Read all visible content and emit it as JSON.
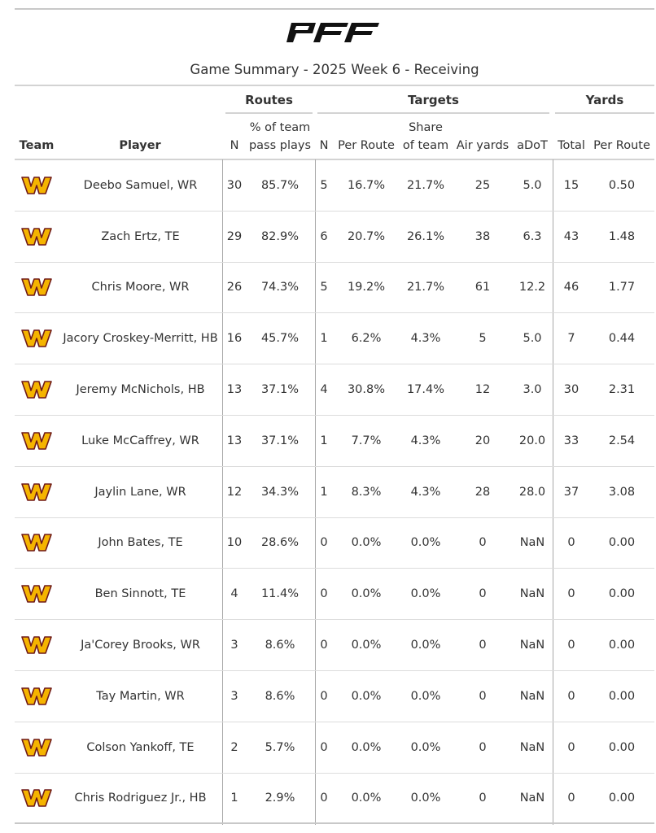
{
  "brand": {
    "logo_text": "PFF",
    "team_logo_color": "#f5b400",
    "team_logo_outline": "#6e1a1a"
  },
  "title": "Game Summary - 2025 Week 6 - Receiving",
  "spanners": {
    "routes": "Routes",
    "targets": "Targets",
    "yards": "Yards"
  },
  "columns": {
    "team": "Team",
    "player": "Player",
    "routes_n": "N",
    "routes_pct_l1": "% of team",
    "routes_pct_l2": "pass plays",
    "targets_n": "N",
    "targets_per_route": "Per Route",
    "share_l1": "Share",
    "share_l2": "of team",
    "air_yards": "Air yards",
    "adot": "aDoT",
    "yards_total": "Total",
    "yards_per_route": "Per Route"
  },
  "rows": [
    {
      "player": "Deebo Samuel, WR",
      "routes": "30",
      "route_pct": "85.7%",
      "targets": "5",
      "tgt_per_route": "16.7%",
      "share": "21.7%",
      "air_yards": "25",
      "adot": "5.0",
      "yards": "15",
      "yds_per_route": "0.50"
    },
    {
      "player": "Zach Ertz, TE",
      "routes": "29",
      "route_pct": "82.9%",
      "targets": "6",
      "tgt_per_route": "20.7%",
      "share": "26.1%",
      "air_yards": "38",
      "adot": "6.3",
      "yards": "43",
      "yds_per_route": "1.48"
    },
    {
      "player": "Chris Moore, WR",
      "routes": "26",
      "route_pct": "74.3%",
      "targets": "5",
      "tgt_per_route": "19.2%",
      "share": "21.7%",
      "air_yards": "61",
      "adot": "12.2",
      "yards": "46",
      "yds_per_route": "1.77"
    },
    {
      "player": "Jacory Croskey-Merritt, HB",
      "routes": "16",
      "route_pct": "45.7%",
      "targets": "1",
      "tgt_per_route": "6.2%",
      "share": "4.3%",
      "air_yards": "5",
      "adot": "5.0",
      "yards": "7",
      "yds_per_route": "0.44"
    },
    {
      "player": "Jeremy McNichols, HB",
      "routes": "13",
      "route_pct": "37.1%",
      "targets": "4",
      "tgt_per_route": "30.8%",
      "share": "17.4%",
      "air_yards": "12",
      "adot": "3.0",
      "yards": "30",
      "yds_per_route": "2.31"
    },
    {
      "player": "Luke McCaffrey, WR",
      "routes": "13",
      "route_pct": "37.1%",
      "targets": "1",
      "tgt_per_route": "7.7%",
      "share": "4.3%",
      "air_yards": "20",
      "adot": "20.0",
      "yards": "33",
      "yds_per_route": "2.54"
    },
    {
      "player": "Jaylin Lane, WR",
      "routes": "12",
      "route_pct": "34.3%",
      "targets": "1",
      "tgt_per_route": "8.3%",
      "share": "4.3%",
      "air_yards": "28",
      "adot": "28.0",
      "yards": "37",
      "yds_per_route": "3.08"
    },
    {
      "player": "John Bates, TE",
      "routes": "10",
      "route_pct": "28.6%",
      "targets": "0",
      "tgt_per_route": "0.0%",
      "share": "0.0%",
      "air_yards": "0",
      "adot": "NaN",
      "yards": "0",
      "yds_per_route": "0.00"
    },
    {
      "player": "Ben Sinnott, TE",
      "routes": "4",
      "route_pct": "11.4%",
      "targets": "0",
      "tgt_per_route": "0.0%",
      "share": "0.0%",
      "air_yards": "0",
      "adot": "NaN",
      "yards": "0",
      "yds_per_route": "0.00"
    },
    {
      "player": "Ja'Corey Brooks, WR",
      "routes": "3",
      "route_pct": "8.6%",
      "targets": "0",
      "tgt_per_route": "0.0%",
      "share": "0.0%",
      "air_yards": "0",
      "adot": "NaN",
      "yards": "0",
      "yds_per_route": "0.00"
    },
    {
      "player": "Tay Martin, WR",
      "routes": "3",
      "route_pct": "8.6%",
      "targets": "0",
      "tgt_per_route": "0.0%",
      "share": "0.0%",
      "air_yards": "0",
      "adot": "NaN",
      "yards": "0",
      "yds_per_route": "0.00"
    },
    {
      "player": "Colson Yankoff, TE",
      "routes": "2",
      "route_pct": "5.7%",
      "targets": "0",
      "tgt_per_route": "0.0%",
      "share": "0.0%",
      "air_yards": "0",
      "adot": "NaN",
      "yards": "0",
      "yds_per_route": "0.00"
    },
    {
      "player": "Chris Rodriguez Jr., HB",
      "routes": "1",
      "route_pct": "2.9%",
      "targets": "0",
      "tgt_per_route": "0.0%",
      "share": "0.0%",
      "air_yards": "0",
      "adot": "NaN",
      "yards": "0",
      "yds_per_route": "0.00"
    }
  ]
}
